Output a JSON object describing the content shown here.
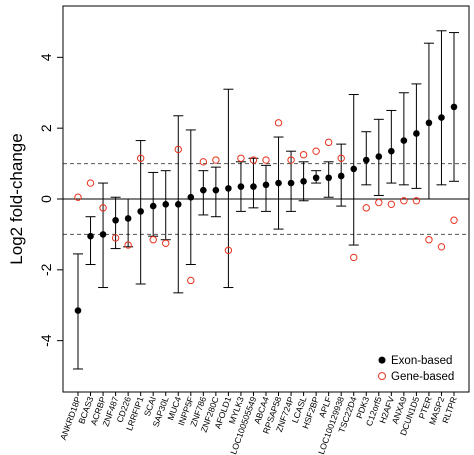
{
  "chart_data": {
    "type": "scatter",
    "title": "",
    "xlabel": "",
    "ylabel": "Log2 fold-change",
    "ylim": [
      -5.45,
      5.45
    ],
    "yticks": [
      -4,
      -2,
      0,
      2,
      4
    ],
    "reference_lines": [
      {
        "y": 0,
        "style": "solid"
      },
      {
        "y": 1,
        "style": "dashed"
      },
      {
        "y": -1,
        "style": "dashed"
      }
    ],
    "legend": {
      "position": "bottom-right",
      "entries": [
        {
          "label": "Exon-based",
          "marker": "filled-circle",
          "color": "#000000"
        },
        {
          "label": "Gene-based",
          "marker": "open-circle",
          "color": "#e8321e"
        }
      ]
    },
    "categories": [
      "ANKRD18P",
      "BCAS3",
      "ACRBP",
      "ZNF487",
      "CD226",
      "LRRFIP1",
      "SCAI",
      "SAP30L",
      "MUC4",
      "INPP5F",
      "ZNF786",
      "ZNF280C",
      "AFOLD1",
      "MYLK3",
      "LOC100505549",
      "ABCA4",
      "RPSAP58",
      "ZNF724P",
      "LCASL",
      "HSF2BP",
      "APLF",
      "LOC100129938",
      "TSC22D4",
      "PDK3",
      "C12orf5",
      "H2AFV",
      "ANXA9",
      "DCUN1D5",
      "PTER",
      "MASP2",
      "RLTPR"
    ],
    "series": [
      {
        "name": "Exon-based",
        "values": [
          -3.15,
          -1.05,
          -1.0,
          -0.6,
          -0.55,
          -0.35,
          -0.2,
          -0.15,
          -0.15,
          0.05,
          0.25,
          0.25,
          0.3,
          0.35,
          0.35,
          0.4,
          0.45,
          0.45,
          0.5,
          0.6,
          0.6,
          0.65,
          0.85,
          1.1,
          1.2,
          1.35,
          1.65,
          1.85,
          2.15,
          2.3,
          2.6
        ],
        "ci_low": [
          -4.8,
          -1.85,
          -2.5,
          -1.4,
          -1.35,
          -2.4,
          -1.05,
          -1.15,
          -2.65,
          -1.85,
          -0.45,
          -0.5,
          -2.5,
          -0.35,
          -0.25,
          -0.35,
          -0.85,
          -0.35,
          -0.05,
          0.45,
          0.05,
          -0.2,
          -1.3,
          0.4,
          0.1,
          0.45,
          0.4,
          0.3,
          0.0,
          0.4,
          0.5
        ],
        "ci_high": [
          -1.55,
          -0.5,
          0.45,
          0.05,
          0.0,
          1.65,
          0.75,
          0.8,
          2.35,
          1.95,
          0.8,
          0.9,
          3.1,
          1.05,
          1.15,
          0.95,
          1.75,
          1.35,
          1.05,
          0.8,
          1.05,
          1.55,
          2.95,
          1.9,
          2.25,
          2.5,
          3.0,
          3.25,
          4.4,
          4.75,
          4.7
        ]
      },
      {
        "name": "Gene-based",
        "values": [
          0.05,
          0.45,
          -0.25,
          -1.1,
          -1.3,
          1.15,
          -1.15,
          -1.25,
          1.4,
          -2.3,
          1.05,
          1.1,
          -1.45,
          1.15,
          1.1,
          1.1,
          2.15,
          1.1,
          1.25,
          1.35,
          1.6,
          1.15,
          -1.65,
          -0.25,
          -0.1,
          -0.15,
          -0.05,
          -0.05,
          -1.15,
          -1.35,
          -0.6
        ]
      }
    ]
  }
}
